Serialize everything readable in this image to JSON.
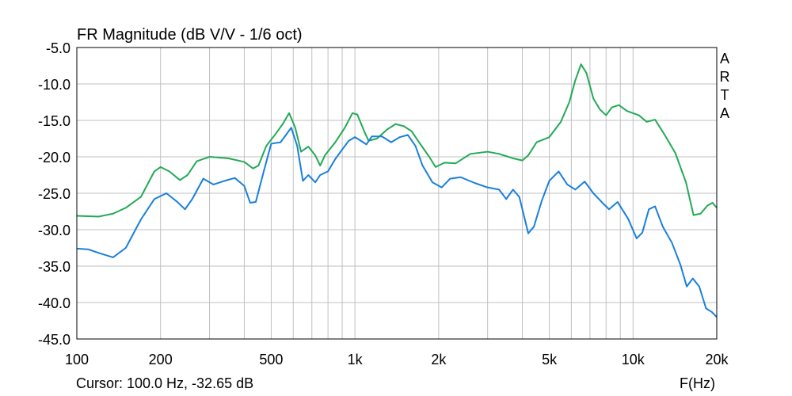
{
  "chart_data": {
    "type": "line",
    "title": "FR Magnitude (dB V/V - 1/6 oct)",
    "brand": "ARTA",
    "xlabel": "F(Hz)",
    "x_scale": "log",
    "xlim": [
      100,
      20000
    ],
    "ylim": [
      -45,
      -5
    ],
    "grid": true,
    "x_ticks": [
      {
        "value": 100,
        "label": "100"
      },
      {
        "value": 200,
        "label": "200"
      },
      {
        "value": 500,
        "label": "500"
      },
      {
        "value": 1000,
        "label": "1k"
      },
      {
        "value": 2000,
        "label": "2k"
      },
      {
        "value": 5000,
        "label": "5k"
      },
      {
        "value": 10000,
        "label": "10k"
      },
      {
        "value": 20000,
        "label": "20k"
      }
    ],
    "y_ticks": [
      {
        "value": -5,
        "label": "-5.0"
      },
      {
        "value": -10,
        "label": "-10.0"
      },
      {
        "value": -15,
        "label": "-15.0"
      },
      {
        "value": -20,
        "label": "-20.0"
      },
      {
        "value": -25,
        "label": "-25.0"
      },
      {
        "value": -30,
        "label": "-30.0"
      },
      {
        "value": -35,
        "label": "-35.0"
      },
      {
        "value": -40,
        "label": "-40.0"
      },
      {
        "value": -45,
        "label": "-45.0"
      }
    ],
    "series": [
      {
        "color": "#22aa55",
        "points": [
          [
            100,
            -28.1
          ],
          [
            120,
            -28.2
          ],
          [
            135,
            -27.8
          ],
          [
            150,
            -27.0
          ],
          [
            170,
            -25.5
          ],
          [
            190,
            -22.0
          ],
          [
            200,
            -21.4
          ],
          [
            215,
            -22.0
          ],
          [
            235,
            -23.2
          ],
          [
            250,
            -22.5
          ],
          [
            270,
            -20.6
          ],
          [
            300,
            -20.0
          ],
          [
            350,
            -20.2
          ],
          [
            400,
            -20.7
          ],
          [
            430,
            -21.6
          ],
          [
            450,
            -21.2
          ],
          [
            480,
            -18.5
          ],
          [
            520,
            -16.8
          ],
          [
            550,
            -15.5
          ],
          [
            580,
            -14.0
          ],
          [
            610,
            -16.0
          ],
          [
            640,
            -19.3
          ],
          [
            680,
            -18.6
          ],
          [
            720,
            -19.8
          ],
          [
            750,
            -21.2
          ],
          [
            780,
            -19.8
          ],
          [
            850,
            -18.0
          ],
          [
            920,
            -16.0
          ],
          [
            980,
            -14.0
          ],
          [
            1020,
            -14.2
          ],
          [
            1080,
            -16.5
          ],
          [
            1120,
            -17.8
          ],
          [
            1200,
            -17.5
          ],
          [
            1300,
            -16.3
          ],
          [
            1400,
            -15.5
          ],
          [
            1500,
            -15.8
          ],
          [
            1600,
            -16.5
          ],
          [
            1700,
            -18.0
          ],
          [
            1850,
            -20.0
          ],
          [
            1950,
            -21.4
          ],
          [
            2100,
            -20.8
          ],
          [
            2300,
            -20.9
          ],
          [
            2600,
            -19.6
          ],
          [
            3000,
            -19.3
          ],
          [
            3300,
            -19.6
          ],
          [
            3700,
            -20.2
          ],
          [
            4000,
            -20.5
          ],
          [
            4200,
            -19.8
          ],
          [
            4500,
            -18.0
          ],
          [
            5000,
            -17.3
          ],
          [
            5500,
            -15.2
          ],
          [
            5900,
            -12.5
          ],
          [
            6200,
            -9.5
          ],
          [
            6500,
            -7.3
          ],
          [
            6800,
            -8.5
          ],
          [
            7200,
            -12.0
          ],
          [
            7600,
            -13.5
          ],
          [
            8000,
            -14.3
          ],
          [
            8400,
            -13.2
          ],
          [
            8900,
            -12.9
          ],
          [
            9500,
            -13.7
          ],
          [
            10500,
            -14.3
          ],
          [
            11200,
            -15.2
          ],
          [
            12000,
            -14.9
          ],
          [
            13000,
            -17.0
          ],
          [
            14200,
            -19.5
          ],
          [
            15500,
            -23.5
          ],
          [
            16500,
            -28.0
          ],
          [
            17500,
            -27.8
          ],
          [
            18500,
            -26.7
          ],
          [
            19300,
            -26.3
          ],
          [
            20000,
            -27.0
          ]
        ]
      },
      {
        "color": "#1a7fdc",
        "points": [
          [
            100,
            -32.6
          ],
          [
            110,
            -32.7
          ],
          [
            120,
            -33.2
          ],
          [
            135,
            -33.8
          ],
          [
            150,
            -32.5
          ],
          [
            170,
            -28.6
          ],
          [
            190,
            -25.8
          ],
          [
            210,
            -25.0
          ],
          [
            230,
            -26.2
          ],
          [
            245,
            -27.2
          ],
          [
            260,
            -25.8
          ],
          [
            285,
            -23.0
          ],
          [
            310,
            -23.8
          ],
          [
            340,
            -23.3
          ],
          [
            370,
            -22.9
          ],
          [
            400,
            -24.0
          ],
          [
            420,
            -26.3
          ],
          [
            440,
            -26.2
          ],
          [
            470,
            -22.0
          ],
          [
            500,
            -18.2
          ],
          [
            540,
            -18.0
          ],
          [
            560,
            -17.2
          ],
          [
            590,
            -16.0
          ],
          [
            620,
            -18.5
          ],
          [
            650,
            -23.3
          ],
          [
            680,
            -22.5
          ],
          [
            720,
            -23.5
          ],
          [
            750,
            -22.5
          ],
          [
            800,
            -22.0
          ],
          [
            850,
            -20.3
          ],
          [
            900,
            -19.0
          ],
          [
            950,
            -17.8
          ],
          [
            1000,
            -17.3
          ],
          [
            1050,
            -17.8
          ],
          [
            1100,
            -18.3
          ],
          [
            1150,
            -17.2
          ],
          [
            1250,
            -17.2
          ],
          [
            1350,
            -18.0
          ],
          [
            1450,
            -17.3
          ],
          [
            1550,
            -17.0
          ],
          [
            1650,
            -18.5
          ],
          [
            1750,
            -21.2
          ],
          [
            1900,
            -23.5
          ],
          [
            2050,
            -24.2
          ],
          [
            2200,
            -23.0
          ],
          [
            2400,
            -22.8
          ],
          [
            2700,
            -23.6
          ],
          [
            3000,
            -24.2
          ],
          [
            3300,
            -24.5
          ],
          [
            3500,
            -25.8
          ],
          [
            3700,
            -24.5
          ],
          [
            3900,
            -25.5
          ],
          [
            4200,
            -30.5
          ],
          [
            4400,
            -29.6
          ],
          [
            4700,
            -26.0
          ],
          [
            5000,
            -23.3
          ],
          [
            5400,
            -22.0
          ],
          [
            5800,
            -23.8
          ],
          [
            6200,
            -24.5
          ],
          [
            6700,
            -23.4
          ],
          [
            7200,
            -25.0
          ],
          [
            7800,
            -26.4
          ],
          [
            8200,
            -27.2
          ],
          [
            8800,
            -26.2
          ],
          [
            9600,
            -28.5
          ],
          [
            10300,
            -31.2
          ],
          [
            10800,
            -30.4
          ],
          [
            11400,
            -27.2
          ],
          [
            12000,
            -26.8
          ],
          [
            12800,
            -29.6
          ],
          [
            13800,
            -31.8
          ],
          [
            14800,
            -34.8
          ],
          [
            15600,
            -37.8
          ],
          [
            16400,
            -36.7
          ],
          [
            17300,
            -37.8
          ],
          [
            18300,
            -40.8
          ],
          [
            19200,
            -41.3
          ],
          [
            20000,
            -42.0
          ]
        ]
      }
    ],
    "cursor_readout": "Cursor: 100.0 Hz, -32.65 dB"
  },
  "colors": {
    "frame": "#000000",
    "grid": "#c0c0c0",
    "background": "#ffffff"
  }
}
